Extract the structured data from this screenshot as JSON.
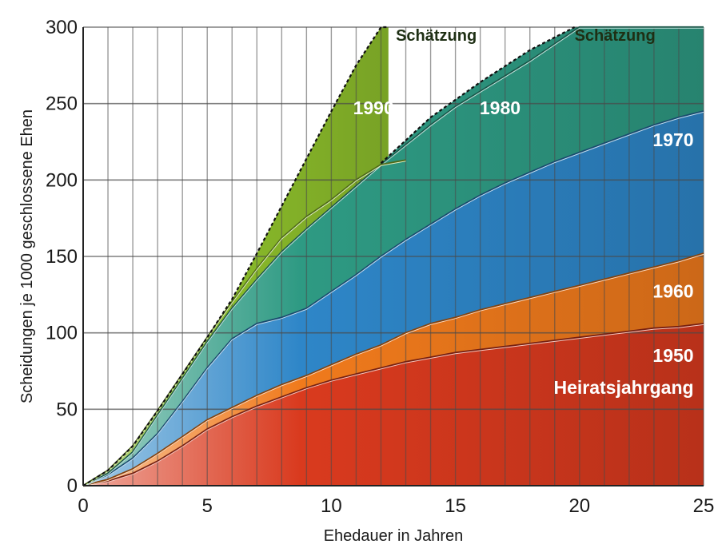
{
  "chart_data": {
    "type": "area",
    "xlabel": "Ehedauer in Jahren",
    "ylabel": "Scheidungen je 1000 geschlossene Ehen",
    "xlim": [
      0,
      25
    ],
    "ylim": [
      0,
      300
    ],
    "x_ticks": [
      "0",
      "5",
      "10",
      "15",
      "20",
      "25"
    ],
    "y_ticks": [
      "0",
      "50",
      "100",
      "150",
      "200",
      "250",
      "300"
    ],
    "grid": true,
    "legend_caption": "Heiratsjahrgang",
    "estimate_label": "Schätzung",
    "series": [
      {
        "name": "1950",
        "color": "#d93a1e",
        "x": [
          0,
          1,
          2,
          3,
          4,
          5,
          6,
          7,
          8,
          9,
          10,
          11,
          12,
          13,
          14,
          15,
          16,
          17,
          18,
          19,
          20,
          21,
          22,
          23,
          24,
          25
        ],
        "y": [
          0,
          3,
          8,
          16,
          26,
          37,
          45,
          52,
          58,
          64,
          69,
          73,
          77,
          81,
          84,
          87,
          89,
          91,
          93,
          95,
          97,
          99,
          101,
          103,
          104,
          106
        ]
      },
      {
        "name": "1960",
        "color": "#f07a1c",
        "x": [
          0,
          1,
          2,
          3,
          4,
          5,
          6,
          7,
          8,
          9,
          10,
          11,
          12,
          13,
          14,
          15,
          16,
          17,
          18,
          19,
          20,
          21,
          22,
          23,
          24,
          25
        ],
        "y": [
          0,
          4,
          11,
          21,
          32,
          43,
          51,
          59,
          66,
          72,
          79,
          86,
          92,
          100,
          106,
          110,
          115,
          119,
          123,
          127,
          131,
          135,
          139,
          143,
          147,
          152
        ]
      },
      {
        "name": "1970",
        "color": "#2e86c8",
        "x": [
          0,
          1,
          2,
          3,
          4,
          5,
          6,
          7,
          8,
          9,
          10,
          11,
          12,
          13,
          14,
          15,
          16,
          17,
          18,
          19,
          20,
          21,
          22,
          23,
          24,
          25
        ],
        "y": [
          0,
          7,
          18,
          34,
          55,
          77,
          96,
          106,
          110,
          116,
          127,
          138,
          150,
          161,
          171,
          181,
          190,
          198,
          205,
          212,
          218,
          224,
          230,
          236,
          241,
          245
        ]
      },
      {
        "name": "1980",
        "color": "#2e9a83",
        "x": [
          0,
          1,
          2,
          3,
          4,
          5,
          6,
          7,
          8,
          9,
          10,
          11,
          12,
          13,
          14,
          15,
          16,
          17,
          18,
          19,
          20,
          21,
          22,
          23,
          24,
          25
        ],
        "y": [
          0,
          8,
          22,
          46,
          70,
          94,
          116,
          135,
          153,
          168,
          182,
          196,
          210,
          223,
          236,
          248,
          258,
          268,
          278,
          289,
          300,
          300,
          300,
          300,
          300,
          300
        ]
      },
      {
        "name": "1990",
        "color": "#8dbf2b",
        "x": [
          0,
          1,
          2,
          3,
          4,
          5,
          6,
          7,
          8,
          9,
          10,
          11,
          12,
          13
        ],
        "y": [
          0,
          10,
          26,
          49,
          73,
          97,
          120,
          142,
          162,
          176,
          187,
          200,
          210,
          213
        ]
      }
    ],
    "estimate_boundaries": {
      "1990": {
        "x": [
          0,
          1,
          2,
          3,
          4,
          5,
          6,
          7,
          8,
          9,
          10,
          11,
          12,
          12.3
        ],
        "y": [
          0,
          10,
          26,
          49,
          73,
          97,
          122,
          152,
          183,
          214,
          245,
          275,
          300,
          300
        ]
      },
      "1980": {
        "x": [
          12,
          14,
          16,
          18,
          19.8
        ],
        "y": [
          211,
          241,
          264,
          285,
          300
        ]
      }
    },
    "annotations": [
      {
        "text": "Schätzung",
        "series": "1990",
        "x": 12.6,
        "y": 291
      },
      {
        "text": "Schätzung",
        "series": "1980",
        "x": 19.8,
        "y": 291
      }
    ]
  }
}
